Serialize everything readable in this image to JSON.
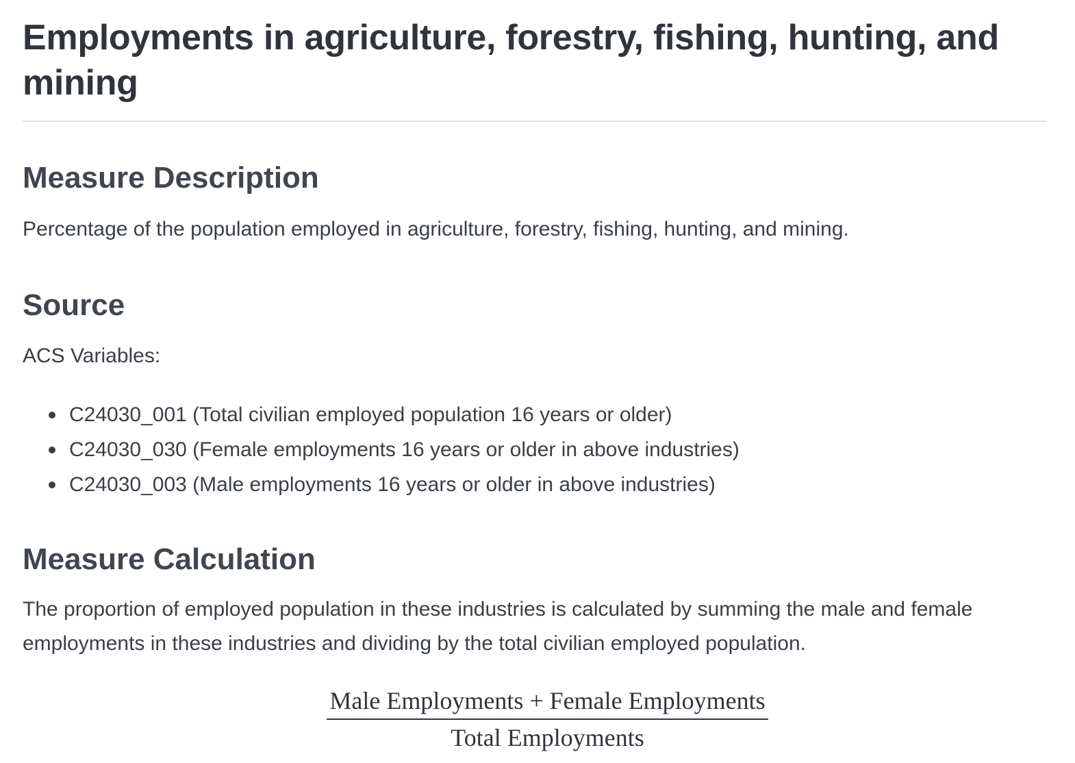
{
  "title": "Employments in agriculture, forestry, fishing, hunting, and mining",
  "description": {
    "heading": "Measure Description",
    "text": "Percentage of the population employed in agriculture, forestry, fishing, hunting, and mining."
  },
  "source": {
    "heading": "Source",
    "intro": "ACS Variables:",
    "variables": [
      "C24030_001 (Total civilian employed population 16 years or older)",
      "C24030_030 (Female employments 16 years or older in above industries)",
      "C24030_003 (Male employments 16 years or older in above industries)"
    ]
  },
  "calculation": {
    "heading": "Measure Calculation",
    "text": "The proportion of employed population in these industries is calculated by summing the male and female employments in these industries and dividing by the total civilian employed population.",
    "formula": {
      "numerator": "Male Employments + Female Employments",
      "denominator": "Total Employments"
    }
  }
}
